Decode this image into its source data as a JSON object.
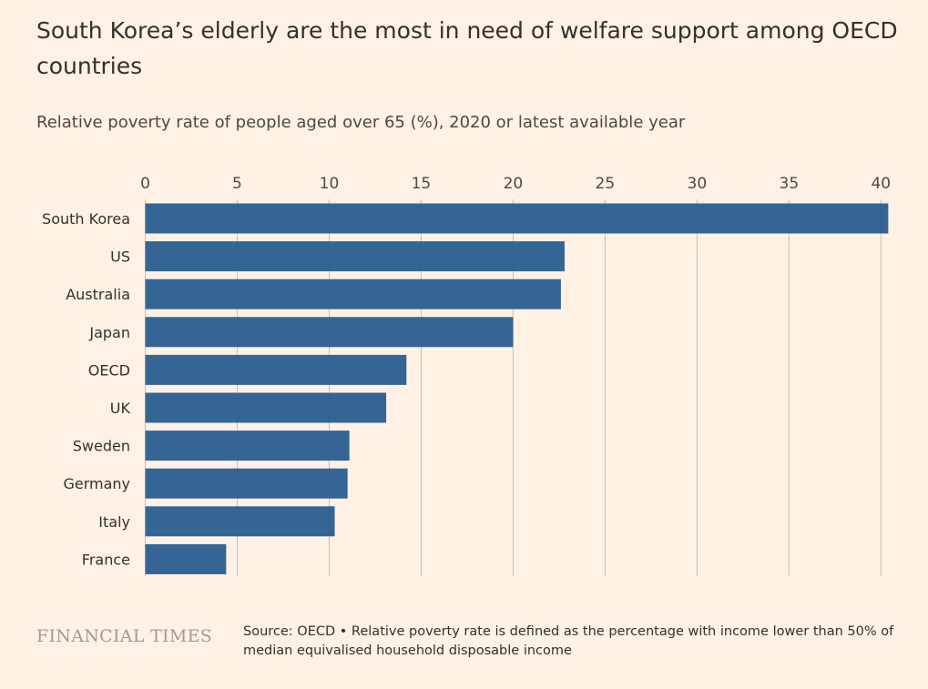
{
  "title": "South Korea’s elderly are the most in need of welfare support among OECD countries",
  "subtitle": "Relative poverty rate of people aged over 65 (%), 2020 or latest available year",
  "logo": "FINANCIAL TIMES",
  "source": "Source: OECD • Relative poverty rate is defined as the percentage with income lower than 50% of median equivalised household disposable income",
  "colors": {
    "background": "#fff1e5",
    "bar": "#2a5d8f",
    "grid": "#c9bfb6",
    "text": "#33302e"
  },
  "chart_data": {
    "type": "bar",
    "orientation": "horizontal",
    "categories": [
      "South Korea",
      "US",
      "Australia",
      "Japan",
      "OECD",
      "UK",
      "Sweden",
      "Germany",
      "Italy",
      "France"
    ],
    "values": [
      40.4,
      22.8,
      22.6,
      20.0,
      14.2,
      13.1,
      11.1,
      11.0,
      10.3,
      4.4
    ],
    "xlim": [
      0,
      40
    ],
    "xticks": [
      "0",
      "5",
      "10",
      "15",
      "20",
      "25",
      "30",
      "35",
      "40"
    ],
    "xaxis_position": "top",
    "grid": "vertical",
    "title": "South Korea’s elderly are the most in need of welfare support among OECD countries",
    "subtitle": "Relative poverty rate of people aged over 65 (%), 2020 or latest available year",
    "xlabel": "",
    "ylabel": ""
  }
}
